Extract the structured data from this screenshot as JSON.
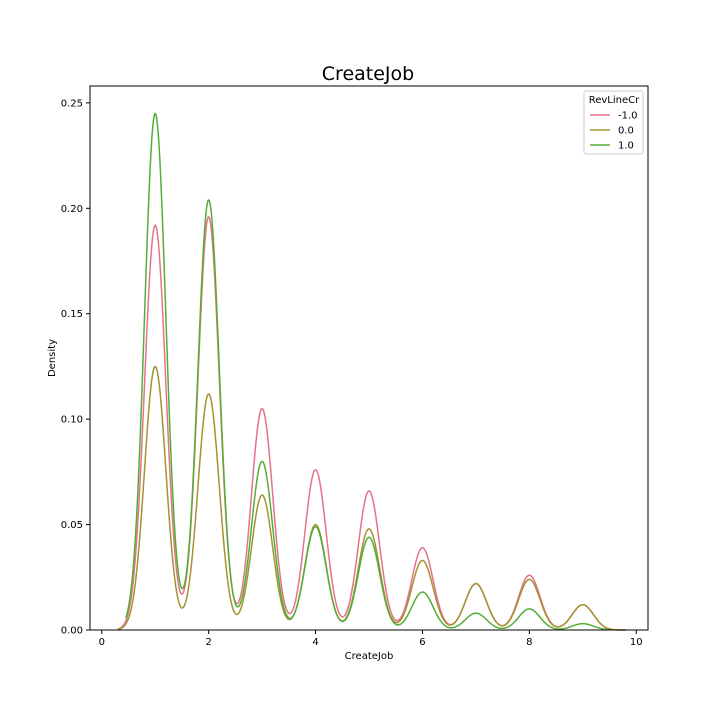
{
  "chart_data": {
    "type": "line",
    "title": "CreateJob",
    "xlabel": "CreateJob",
    "ylabel": "Density",
    "xlim": [
      -0.22,
      10.22
    ],
    "ylim": [
      0,
      0.258
    ],
    "x_ticks": [
      0,
      2,
      4,
      6,
      8,
      10
    ],
    "y_ticks": [
      0.0,
      0.05,
      0.1,
      0.15,
      0.2,
      0.25
    ],
    "y_tick_labels": [
      "0.00",
      "0.05",
      "0.10",
      "0.15",
      "0.20",
      "0.25"
    ],
    "x_tick_labels": [
      "0",
      "2",
      "4",
      "6",
      "8",
      "10"
    ],
    "grid": false,
    "legend": {
      "title": "RevLineCr",
      "placement": "top-right",
      "entries": [
        "-1.0",
        "0.0",
        "1.0"
      ]
    },
    "curve_shape": {
      "bandwidth": 0.2,
      "peaks": [
        1,
        2,
        3,
        4,
        5,
        6,
        7,
        8,
        9
      ]
    },
    "series": [
      {
        "name": "-1.0",
        "color": "#e4738a",
        "x_range": [
          0.3,
          9.8
        ],
        "values": [
          0.192,
          0.196,
          0.105,
          0.076,
          0.066,
          0.039,
          0.022,
          0.026,
          0.012
        ]
      },
      {
        "name": "0.0",
        "color": "#a39332",
        "x_range": [
          0.3,
          9.8
        ],
        "values": [
          0.125,
          0.112,
          0.064,
          0.05,
          0.048,
          0.033,
          0.022,
          0.024,
          0.012
        ]
      },
      {
        "name": "1.0",
        "color": "#55ad38",
        "x_range": [
          0.45,
          9.55
        ],
        "values": [
          0.245,
          0.204,
          0.08,
          0.049,
          0.044,
          0.018,
          0.008,
          0.01,
          0.003
        ]
      }
    ]
  }
}
